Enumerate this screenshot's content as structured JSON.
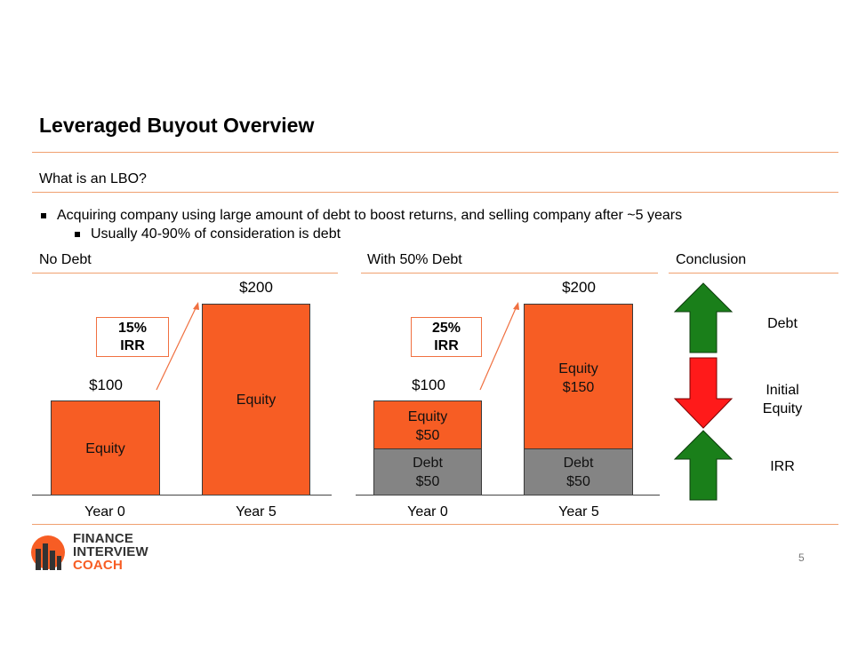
{
  "slide": {
    "title": "Leveraged Buyout Overview",
    "subtitle": "What is an LBO?",
    "bullets": [
      {
        "text": "Acquiring company using large amount of debt to boost returns, and selling company after ~5 years",
        "level": 1
      },
      {
        "text": "Usually 40-90% of consideration is debt",
        "level": 2
      }
    ],
    "page_number": "5"
  },
  "colors": {
    "orange": "#f75d24",
    "gray": "#848484",
    "green": "#1a7f1a",
    "red": "#ff1a1a",
    "rule": "#f0a070"
  },
  "sections": {
    "no_debt": {
      "label": "No Debt",
      "irr_line1": "15%",
      "irr_line2": "IRR",
      "year0_value": "$100",
      "year5_value": "$200",
      "year0_bar_label": "Equity",
      "year5_bar_label": "Equity",
      "axis": [
        "Year 0",
        "Year 5"
      ]
    },
    "with_debt": {
      "label": "With 50% Debt",
      "irr_line1": "25%",
      "irr_line2": "IRR",
      "year0_value": "$100",
      "year5_value": "$200",
      "year0_equity_line1": "Equity",
      "year0_equity_line2": "$50",
      "year0_debt_line1": "Debt",
      "year0_debt_line2": "$50",
      "year5_equity_line1": "Equity",
      "year5_equity_line2": "$150",
      "year5_debt_line1": "Debt",
      "year5_debt_line2": "$50",
      "axis": [
        "Year 0",
        "Year 5"
      ]
    },
    "conclusion": {
      "label": "Conclusion",
      "items": [
        {
          "line1": "Debt",
          "line2": "",
          "direction": "up",
          "icon": "up-arrow-icon"
        },
        {
          "line1": "Initial",
          "line2": "Equity",
          "direction": "down",
          "icon": "down-arrow-icon"
        },
        {
          "line1": "IRR",
          "line2": "",
          "direction": "up",
          "icon": "up-arrow-icon"
        }
      ]
    }
  },
  "logo": {
    "line1": "FINANCE",
    "line2": "INTERVIEW",
    "line3": "COACH"
  }
}
